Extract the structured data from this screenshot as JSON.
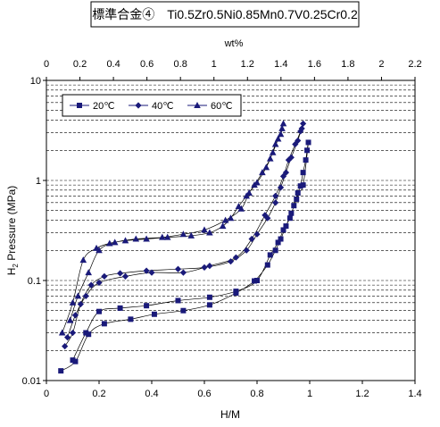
{
  "chart_data": {
    "type": "scatter",
    "title": "標準合金④　Ti0.5Zr0.5Ni0.85Mn0.7V0.25Cr0.2",
    "xlabel": "H/M",
    "x2label": "wt%",
    "ylabel_main": "H",
    "ylabel_sub": "2",
    "ylabel_rest": " Pressure (MPa)",
    "xlim": [
      0,
      1.4
    ],
    "x2lim": [
      0,
      2.2
    ],
    "ylim": [
      0.01,
      10
    ],
    "yscale": "log",
    "grid": "horizontal dashed",
    "legend_position": "top-left",
    "x_ticks": [
      "0",
      "0.2",
      "0.4",
      "0.6",
      "0.8",
      "1",
      "1.2",
      "1.4"
    ],
    "x2_ticks": [
      "0",
      "0.2",
      "0.4",
      "0.6",
      "0.8",
      "1",
      "1.2",
      "1.4",
      "1.6",
      "1.8",
      "2",
      "2.2"
    ],
    "y_ticks": [
      "0.01",
      "0.1",
      "1",
      "10"
    ],
    "series": [
      {
        "name": "20℃",
        "marker": "square",
        "color": "#1a1a7a",
        "points": [
          [
            0.055,
            0.0125
          ],
          [
            0.11,
            0.0155
          ],
          [
            0.16,
            0.029
          ],
          [
            0.22,
            0.037
          ],
          [
            0.32,
            0.041
          ],
          [
            0.41,
            0.046
          ],
          [
            0.52,
            0.05
          ],
          [
            0.62,
            0.057
          ],
          [
            0.72,
            0.075
          ],
          [
            0.79,
            0.099
          ],
          [
            0.84,
            0.143
          ],
          [
            0.87,
            0.2
          ],
          [
            0.89,
            0.26
          ],
          [
            0.91,
            0.35
          ],
          [
            0.93,
            0.47
          ],
          [
            0.95,
            0.65
          ],
          [
            0.965,
            0.88
          ],
          [
            0.975,
            1.2
          ],
          [
            0.985,
            1.6
          ],
          [
            0.99,
            2.0
          ],
          [
            0.995,
            2.4
          ],
          [
            0.975,
            0.9
          ],
          [
            0.955,
            0.75
          ],
          [
            0.94,
            0.56
          ],
          [
            0.925,
            0.42
          ],
          [
            0.9,
            0.32
          ],
          [
            0.88,
            0.24
          ],
          [
            0.85,
            0.18
          ],
          [
            0.8,
            0.1
          ],
          [
            0.72,
            0.078
          ],
          [
            0.62,
            0.068
          ],
          [
            0.5,
            0.063
          ],
          [
            0.38,
            0.056
          ],
          [
            0.28,
            0.053
          ],
          [
            0.2,
            0.049
          ],
          [
            0.15,
            0.03
          ],
          [
            0.1,
            0.016
          ]
        ]
      },
      {
        "name": "40℃",
        "marker": "diamond",
        "color": "#1a1a7a",
        "points": [
          [
            0.07,
            0.022
          ],
          [
            0.1,
            0.03
          ],
          [
            0.13,
            0.058
          ],
          [
            0.17,
            0.09
          ],
          [
            0.22,
            0.11
          ],
          [
            0.28,
            0.118
          ],
          [
            0.38,
            0.125
          ],
          [
            0.5,
            0.13
          ],
          [
            0.6,
            0.135
          ],
          [
            0.7,
            0.155
          ],
          [
            0.76,
            0.2
          ],
          [
            0.8,
            0.29
          ],
          [
            0.84,
            0.42
          ],
          [
            0.87,
            0.6
          ],
          [
            0.89,
            0.85
          ],
          [
            0.91,
            1.2
          ],
          [
            0.93,
            1.7
          ],
          [
            0.955,
            2.5
          ],
          [
            0.965,
            3.1
          ],
          [
            0.975,
            3.7
          ],
          [
            0.97,
            3.3
          ],
          [
            0.945,
            2.3
          ],
          [
            0.92,
            1.6
          ],
          [
            0.9,
            1.1
          ],
          [
            0.87,
            0.7
          ],
          [
            0.83,
            0.45
          ],
          [
            0.78,
            0.26
          ],
          [
            0.72,
            0.17
          ],
          [
            0.62,
            0.14
          ],
          [
            0.52,
            0.12
          ],
          [
            0.4,
            0.12
          ],
          [
            0.3,
            0.11
          ],
          [
            0.2,
            0.095
          ],
          [
            0.15,
            0.07
          ],
          [
            0.11,
            0.045
          ],
          [
            0.08,
            0.027
          ]
        ]
      },
      {
        "name": "60℃",
        "marker": "triangle",
        "color": "#1a1a7a",
        "points": [
          [
            0.06,
            0.03
          ],
          [
            0.1,
            0.06
          ],
          [
            0.14,
            0.16
          ],
          [
            0.19,
            0.21
          ],
          [
            0.24,
            0.235
          ],
          [
            0.3,
            0.25
          ],
          [
            0.38,
            0.26
          ],
          [
            0.46,
            0.27
          ],
          [
            0.55,
            0.28
          ],
          [
            0.62,
            0.3
          ],
          [
            0.67,
            0.35
          ],
          [
            0.7,
            0.42
          ],
          [
            0.73,
            0.55
          ],
          [
            0.76,
            0.7
          ],
          [
            0.79,
            0.9
          ],
          [
            0.82,
            1.2
          ],
          [
            0.85,
            1.65
          ],
          [
            0.87,
            2.3
          ],
          [
            0.89,
            2.9
          ],
          [
            0.9,
            3.7
          ],
          [
            0.895,
            3.3
          ],
          [
            0.88,
            2.6
          ],
          [
            0.86,
            1.9
          ],
          [
            0.835,
            1.35
          ],
          [
            0.8,
            0.95
          ],
          [
            0.77,
            0.75
          ],
          [
            0.74,
            0.52
          ],
          [
            0.68,
            0.4
          ],
          [
            0.6,
            0.32
          ],
          [
            0.52,
            0.29
          ],
          [
            0.44,
            0.27
          ],
          [
            0.34,
            0.26
          ],
          [
            0.26,
            0.24
          ],
          [
            0.2,
            0.2
          ],
          [
            0.16,
            0.12
          ],
          [
            0.12,
            0.07
          ],
          [
            0.09,
            0.04
          ]
        ]
      }
    ]
  }
}
